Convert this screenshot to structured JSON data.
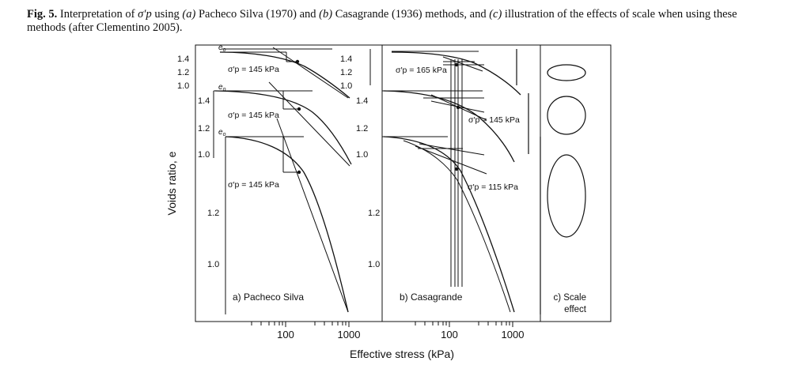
{
  "caption": {
    "label": "Fig. 5.",
    "text_1": " Interpretation of ",
    "symbol": "σ′p",
    "text_2": " using ",
    "a_marker": "(a)",
    "text_3": " Pacheco Silva (1970) and ",
    "b_marker": "(b)",
    "text_4": " Casagrande (1936) methods, and ",
    "c_marker": "(c)",
    "text_5": " illustration of the effects of scale when using these methods (after Clementino 2005)."
  },
  "figure": {
    "y_axis_label": "Voids ratio, e",
    "x_axis_label": "Effective stress (kPa)",
    "e0_label": "e",
    "e0_sub": "o",
    "x_ticks": [
      "100",
      "1000"
    ],
    "panels": {
      "a": {
        "title": "a) Pacheco Silva",
        "top_y_ticks": [
          "1.4",
          "1.2",
          "1.0"
        ],
        "mid_y_ticks": [
          "1.4",
          "1.2",
          "1.0"
        ],
        "big_y_ticks": [
          "1.2",
          "1.0"
        ],
        "annotations": [
          "σ′p = 145 kPa",
          "σ′p = 145 kPa",
          "σ′p = 145 kPa"
        ]
      },
      "b": {
        "title": "b) Casagrande",
        "top_y_ticks": [
          "1.4",
          "1.2",
          "1.0"
        ],
        "mid_y_ticks": [
          "1.4",
          "1.2",
          "1.0"
        ],
        "big_y_ticks": [
          "1.2",
          "1.0"
        ],
        "annotations": [
          "σ′p = 165 kPa",
          "σ′p = 145 kPa",
          "σ′p = 115 kPa"
        ]
      },
      "c": {
        "title_line1": "c) Scale",
        "title_line2": "effect"
      }
    }
  }
}
